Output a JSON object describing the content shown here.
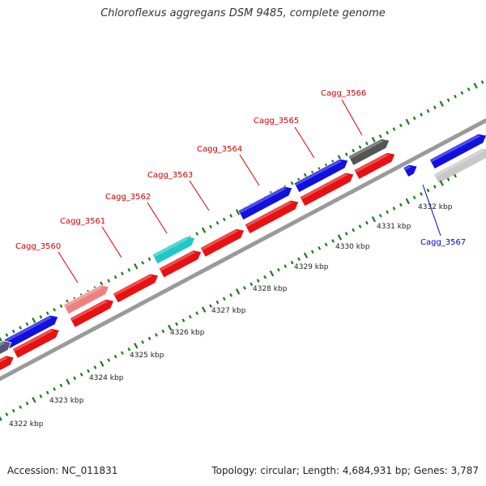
{
  "title": "Chloroflexus aggregans DSM 9485, complete genome",
  "footer": {
    "accession": "Accession: NC_011831",
    "summary": "Topology: circular; Length: 4,684,931 bp; Genes: 3,787"
  },
  "colors": {
    "forward_gene": "#1010e0",
    "reverse_gene": "#e81010",
    "highlight_pink": "#f08080",
    "highlight_cyan": "#20c8c8",
    "dark_gene": "#555555",
    "light_gene": "#c8c8c8",
    "backbone": "#9a9a9a",
    "tick": "#1a7a1a",
    "label_red": "#cc0000",
    "label_blue": "#0000cc"
  },
  "scale_labels": [
    "4322 kbp",
    "4323 kbp",
    "4324 kbp",
    "4325 kbp",
    "4326 kbp",
    "4327 kbp",
    "4328 kbp",
    "4329 kbp",
    "4330 kbp",
    "4331 kbp",
    "4332 kbp"
  ],
  "gene_labels": [
    {
      "name": "Cagg_3560",
      "color": "label_red"
    },
    {
      "name": "Cagg_3561",
      "color": "label_red"
    },
    {
      "name": "Cagg_3562",
      "color": "label_red"
    },
    {
      "name": "Cagg_3563",
      "color": "label_red"
    },
    {
      "name": "Cagg_3564",
      "color": "label_red"
    },
    {
      "name": "Cagg_3565",
      "color": "label_red"
    },
    {
      "name": "Cagg_3566",
      "color": "label_red"
    },
    {
      "name": "Cagg_3567",
      "color": "label_blue"
    }
  ]
}
